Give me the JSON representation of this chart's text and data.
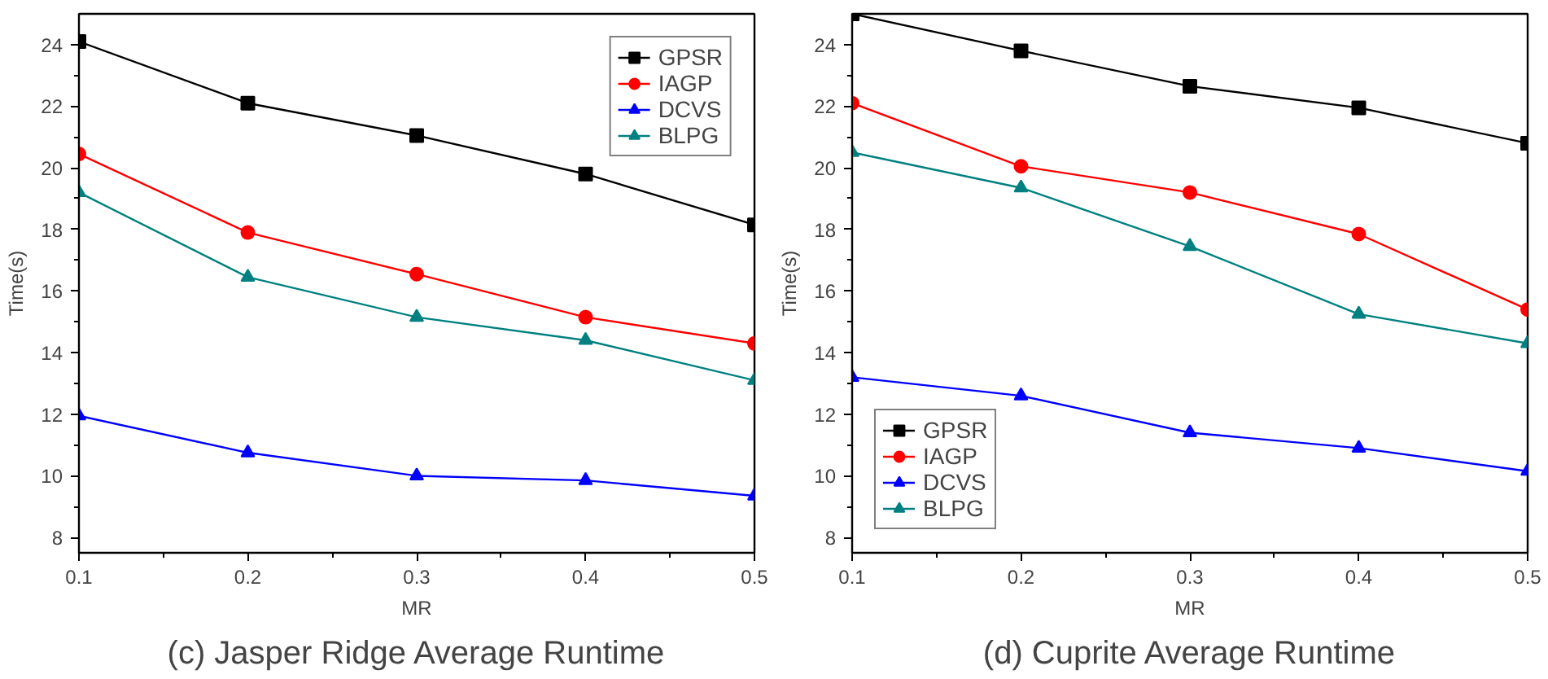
{
  "chart_data": [
    {
      "type": "line",
      "title": "(c) Jasper Ridge Average Runtime",
      "xlabel": "MR",
      "ylabel": "Time(s)",
      "x": [
        0.1,
        0.2,
        0.3,
        0.4,
        0.5
      ],
      "xlim": [
        0.1,
        0.5
      ],
      "xticks": [
        0.1,
        0.2,
        0.3,
        0.4,
        0.5
      ],
      "ylim": [
        7.5,
        25
      ],
      "yticks": [
        8,
        10,
        12,
        14,
        16,
        18,
        20,
        22,
        24
      ],
      "grid": false,
      "legend": "top right",
      "series": [
        {
          "name": "GPSR",
          "color": "#000000",
          "marker": "square",
          "values": [
            24.1,
            22.1,
            21.05,
            19.8,
            18.15
          ]
        },
        {
          "name": "IAGP",
          "color": "#ff0000",
          "marker": "circle",
          "values": [
            20.45,
            17.9,
            16.55,
            15.15,
            14.3
          ]
        },
        {
          "name": "DCVS",
          "color": "#0000ff",
          "marker": "triangle",
          "values": [
            11.95,
            10.75,
            10.0,
            9.85,
            9.35
          ]
        },
        {
          "name": "BLPG",
          "color": "#008080",
          "marker": "triangle",
          "values": [
            19.2,
            16.45,
            15.15,
            14.4,
            13.1
          ]
        }
      ]
    },
    {
      "type": "line",
      "title": "(d) Cuprite Average Runtime",
      "xlabel": "MR",
      "ylabel": "Time(s)",
      "x": [
        0.1,
        0.2,
        0.3,
        0.4,
        0.5
      ],
      "xlim": [
        0.1,
        0.5
      ],
      "xticks": [
        0.1,
        0.2,
        0.3,
        0.4,
        0.5
      ],
      "ylim": [
        7.5,
        25
      ],
      "yticks": [
        8,
        10,
        12,
        14,
        16,
        18,
        20,
        22,
        24
      ],
      "grid": false,
      "legend": "bottom left",
      "series": [
        {
          "name": "GPSR",
          "color": "#000000",
          "marker": "square",
          "values": [
            25.0,
            23.8,
            22.65,
            21.95,
            20.8
          ]
        },
        {
          "name": "IAGP",
          "color": "#ff0000",
          "marker": "circle",
          "values": [
            22.1,
            20.05,
            19.2,
            17.85,
            15.4
          ]
        },
        {
          "name": "DCVS",
          "color": "#0000ff",
          "marker": "triangle",
          "values": [
            13.2,
            12.6,
            11.4,
            10.9,
            10.15
          ]
        },
        {
          "name": "BLPG",
          "color": "#008080",
          "marker": "triangle",
          "values": [
            20.5,
            19.35,
            17.45,
            15.25,
            14.3
          ]
        }
      ]
    }
  ]
}
